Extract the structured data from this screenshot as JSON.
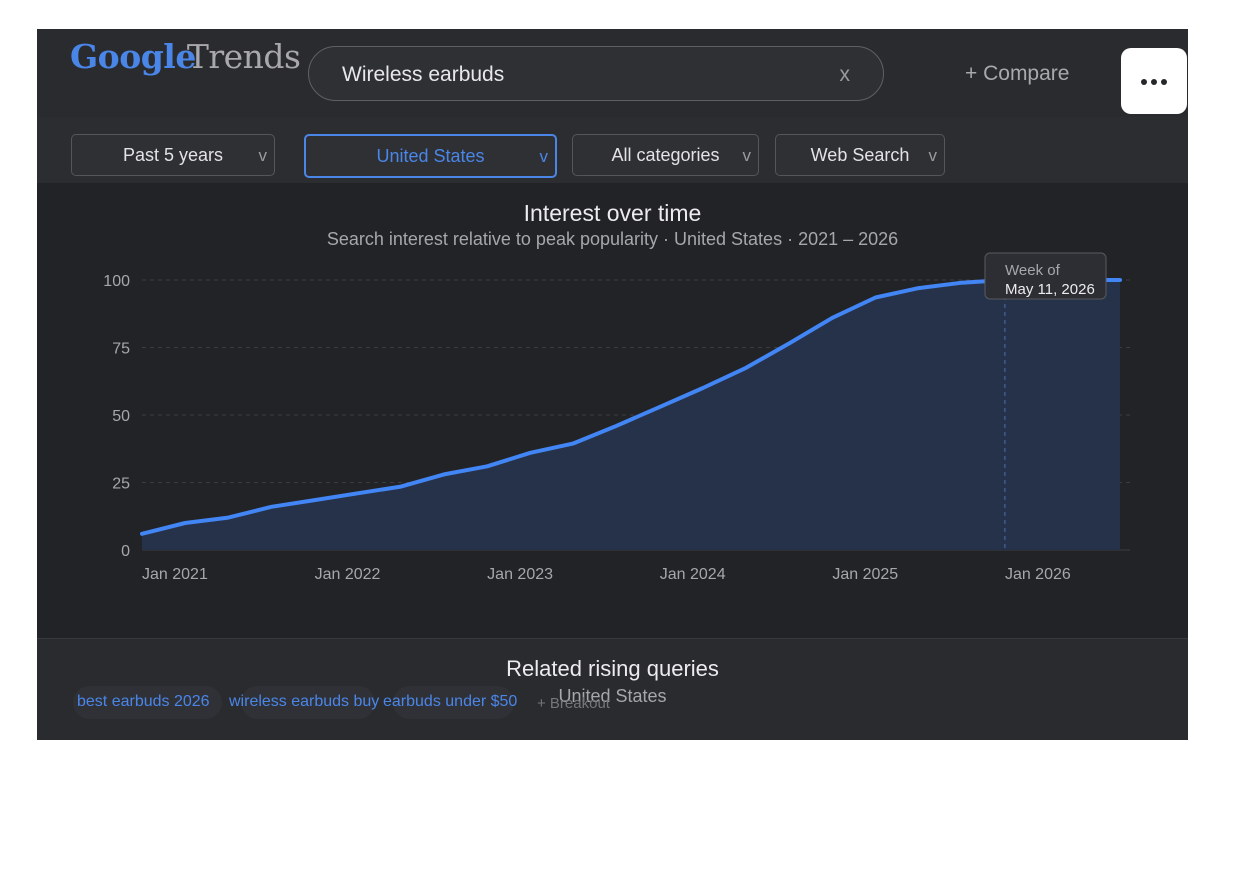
{
  "logo": {
    "google": "Google",
    "trends": "Trends"
  },
  "search": {
    "query": "Wireless earbuds",
    "clear_label": "x"
  },
  "compare_label": "+ Compare",
  "filters": [
    {
      "label": "Past 5 years",
      "caret": "v",
      "active": false
    },
    {
      "label": "United States",
      "caret": "v",
      "active": true
    },
    {
      "label": "All categories",
      "caret": "v",
      "active": false
    },
    {
      "label": "Web Search",
      "caret": "v",
      "active": false
    }
  ],
  "chart_data": {
    "type": "area",
    "title": "Interest over time",
    "subtitle": "Search interest relative to peak popularity · United States · 2021 – 2026",
    "x_ticks": [
      "Jan 2021",
      "Jan 2022",
      "Jan 2023",
      "Jan 2024",
      "Jan 2025",
      "Jan 2026"
    ],
    "y_ticks": [
      "0",
      "25",
      "50",
      "75",
      "100"
    ],
    "ylim": [
      0,
      100
    ],
    "xlim": [
      "2021-01",
      "2026-09"
    ],
    "grid": true,
    "series": [
      {
        "x": [
          "2021-01",
          "2021-04",
          "2021-07",
          "2021-10",
          "2022-01",
          "2022-04",
          "2022-07",
          "2022-10",
          "2023-01",
          "2023-04",
          "2023-07",
          "2023-10",
          "2024-01",
          "2024-04",
          "2024-07",
          "2024-10",
          "2025-01",
          "2025-04",
          "2025-07",
          "2025-10",
          "2026-01",
          "2026-04",
          "2026-07",
          "2026-09"
        ],
        "values": [
          6,
          10,
          12,
          16,
          18.5,
          21,
          23.5,
          28,
          31,
          36,
          39.5,
          46,
          53,
          60,
          67.5,
          76.5,
          86,
          93.5,
          97,
          99,
          100,
          100,
          100,
          100
        ]
      }
    ],
    "highlight": {
      "label": "Week of",
      "date": "May 11, 2026",
      "value": 100
    },
    "colors": {
      "line": "#4285f4",
      "fill": "#26324a",
      "grid": "#3b3c41",
      "axis": "#a6a7ab"
    }
  },
  "related": {
    "title": "Related rising queries",
    "subtitle": "United States",
    "chips": [
      "best earbuds 2026",
      "wireless earbuds buy",
      "earbuds under $50"
    ],
    "breakout": "+ Breakout"
  },
  "icons": {
    "menu": "more-horizontal-icon"
  }
}
